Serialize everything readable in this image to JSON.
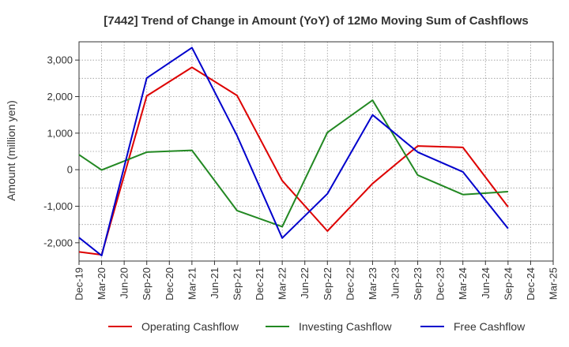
{
  "chart_data": {
    "type": "line",
    "title": "[7442]  Trend of Change in Amount (YoY) of 12Mo Moving Sum of Cashflows",
    "xlabel": "",
    "ylabel": "Amount (million yen)",
    "ylim": [
      -2500,
      3500
    ],
    "yticks": [
      -2000,
      -1000,
      0,
      1000,
      2000,
      3000
    ],
    "ytick_labels": [
      "-2,000",
      "-1,000",
      "0",
      "1,000",
      "2,000",
      "3,000"
    ],
    "categories": [
      "Dec-19",
      "Mar-20",
      "Jun-20",
      "Sep-20",
      "Dec-20",
      "Mar-21",
      "Jun-21",
      "Sep-21",
      "Dec-21",
      "Mar-22",
      "Jun-22",
      "Sep-22",
      "Dec-22",
      "Mar-23",
      "Jun-23",
      "Sep-23",
      "Dec-23",
      "Mar-24",
      "Jun-24",
      "Sep-24",
      "Dec-24",
      "Mar-25"
    ],
    "grid": true,
    "legend_position": "bottom",
    "series": [
      {
        "name": "Operating Cashflow",
        "color": "#dd0000",
        "points": [
          [
            0,
            -2250
          ],
          [
            1,
            -2330
          ],
          [
            3,
            2020
          ],
          [
            5,
            2800
          ],
          [
            7,
            2030
          ],
          [
            9,
            -300
          ],
          [
            11,
            -1680
          ],
          [
            13,
            -380
          ],
          [
            15,
            650
          ],
          [
            17,
            610
          ],
          [
            19,
            -1020
          ]
        ]
      },
      {
        "name": "Investing Cashflow",
        "color": "#228822",
        "points": [
          [
            0,
            410
          ],
          [
            1,
            -10
          ],
          [
            3,
            480
          ],
          [
            5,
            530
          ],
          [
            7,
            -1120
          ],
          [
            9,
            -1560
          ],
          [
            11,
            1020
          ],
          [
            13,
            1900
          ],
          [
            15,
            -150
          ],
          [
            17,
            -680
          ],
          [
            19,
            -600
          ]
        ]
      },
      {
        "name": "Free Cashflow",
        "color": "#0000cc",
        "points": [
          [
            0,
            -1860
          ],
          [
            1,
            -2350
          ],
          [
            3,
            2510
          ],
          [
            5,
            3340
          ],
          [
            7,
            930
          ],
          [
            9,
            -1870
          ],
          [
            11,
            -660
          ],
          [
            13,
            1500
          ],
          [
            15,
            480
          ],
          [
            17,
            -60
          ],
          [
            19,
            -1610
          ]
        ]
      }
    ]
  }
}
